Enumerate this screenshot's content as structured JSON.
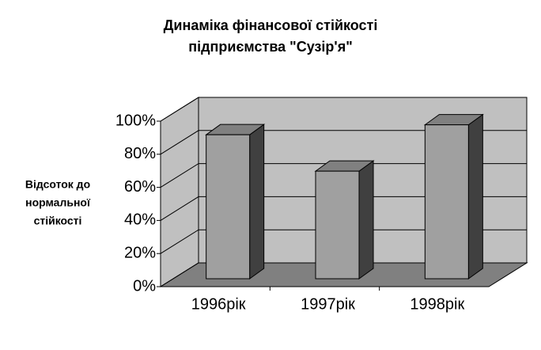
{
  "chart_data": {
    "type": "bar3d",
    "title": [
      "Динаміка фінансової стійкості",
      "підприємства \"Сузір'я\""
    ],
    "y_label": [
      "Відсоток до",
      "нормальної",
      "стійкості"
    ],
    "categories": [
      "1996рік",
      "1997рік",
      "1998рік"
    ],
    "values": [
      87,
      65,
      93
    ],
    "color": "#a0a0a0",
    "ylim": [
      0,
      100
    ],
    "yticks": [
      {
        "value": 0,
        "label": "0%"
      },
      {
        "value": 20,
        "label": "20%"
      },
      {
        "value": 40,
        "label": "40%"
      },
      {
        "value": 60,
        "label": "60%"
      },
      {
        "value": 80,
        "label": "80%"
      },
      {
        "value": 100,
        "label": "100%"
      }
    ],
    "grid": true
  }
}
